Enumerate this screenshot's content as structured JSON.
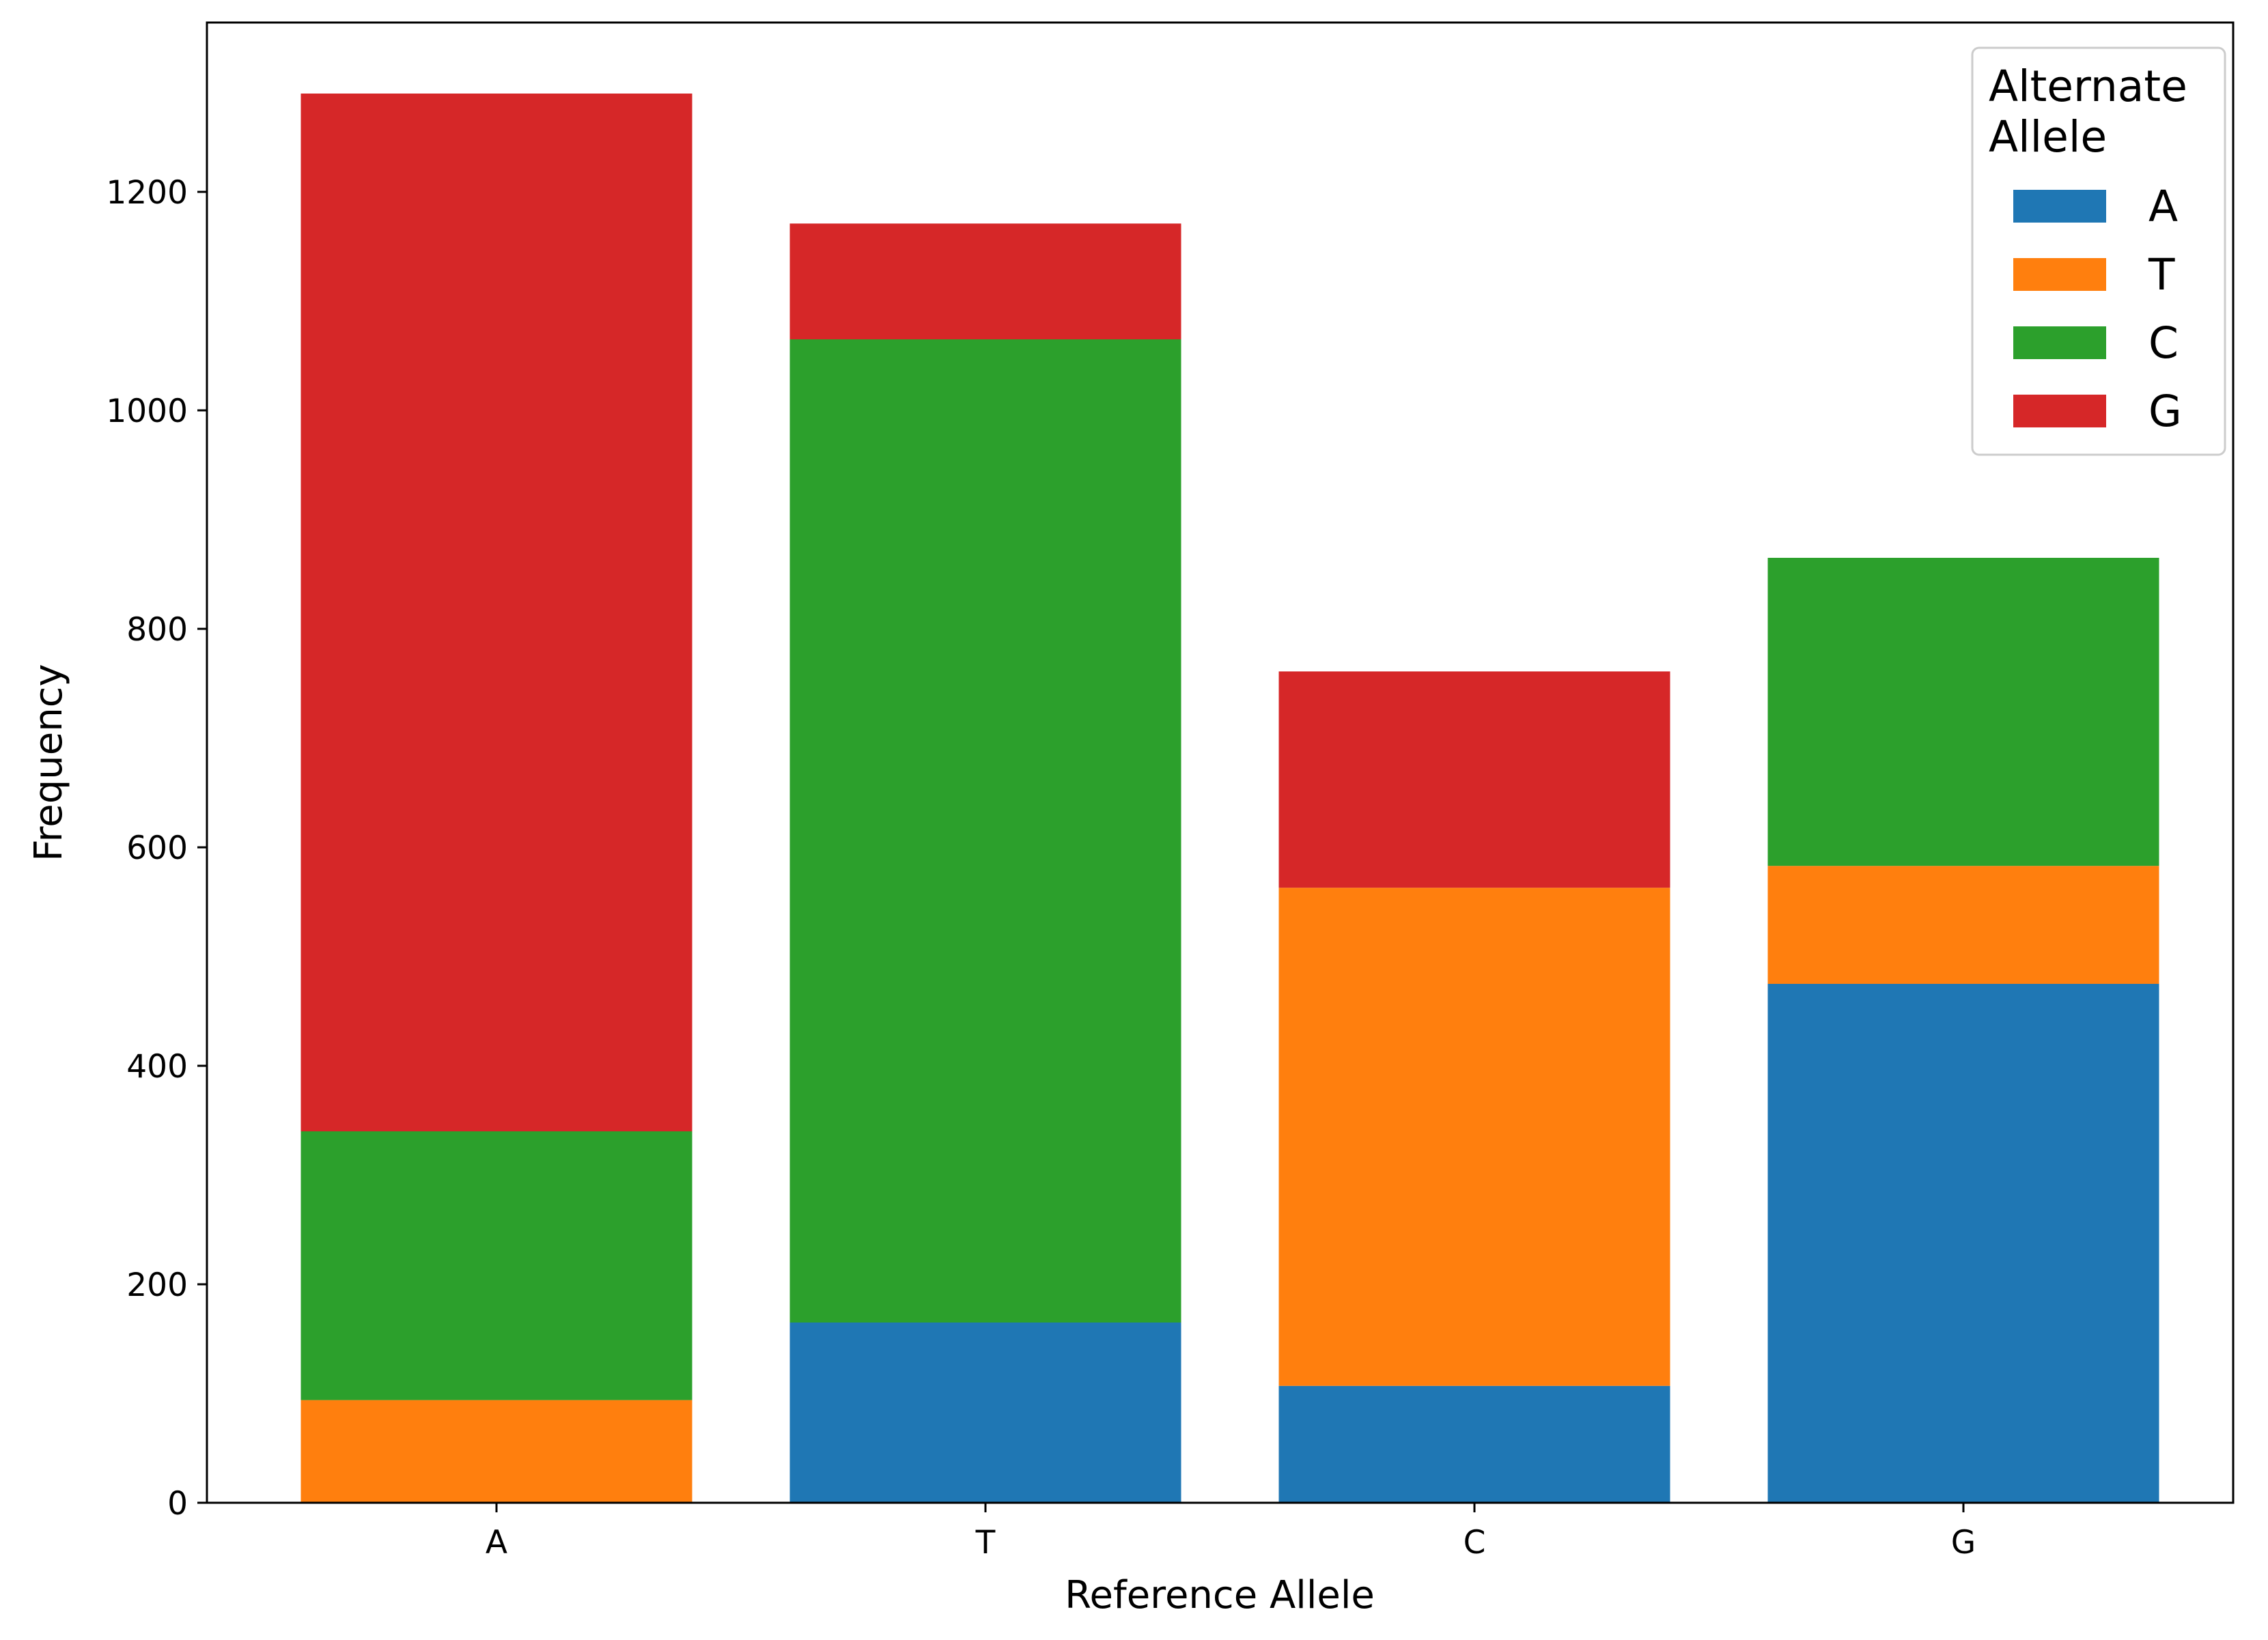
{
  "chart_data": {
    "type": "bar",
    "stacked": true,
    "title": "",
    "xlabel": "Reference Allele",
    "ylabel": "Frequency",
    "categories": [
      "A",
      "T",
      "C",
      "G"
    ],
    "series": [
      {
        "name": "A",
        "color": "#1f77b4",
        "values": [
          0,
          165,
          107,
          475
        ]
      },
      {
        "name": "T",
        "color": "#ff7f0e",
        "values": [
          94,
          0,
          456,
          108
        ]
      },
      {
        "name": "C",
        "color": "#2ca02c",
        "values": [
          246,
          900,
          0,
          282
        ]
      },
      {
        "name": "G",
        "color": "#d62728",
        "values": [
          950,
          106,
          198,
          0
        ]
      }
    ],
    "ylim": [
      0,
      1355
    ],
    "yticks": [
      0,
      200,
      400,
      600,
      800,
      1000,
      1200
    ],
    "grid": false,
    "legend": {
      "title_lines": [
        "Alternate",
        "Allele"
      ],
      "placement": "top-right"
    }
  }
}
